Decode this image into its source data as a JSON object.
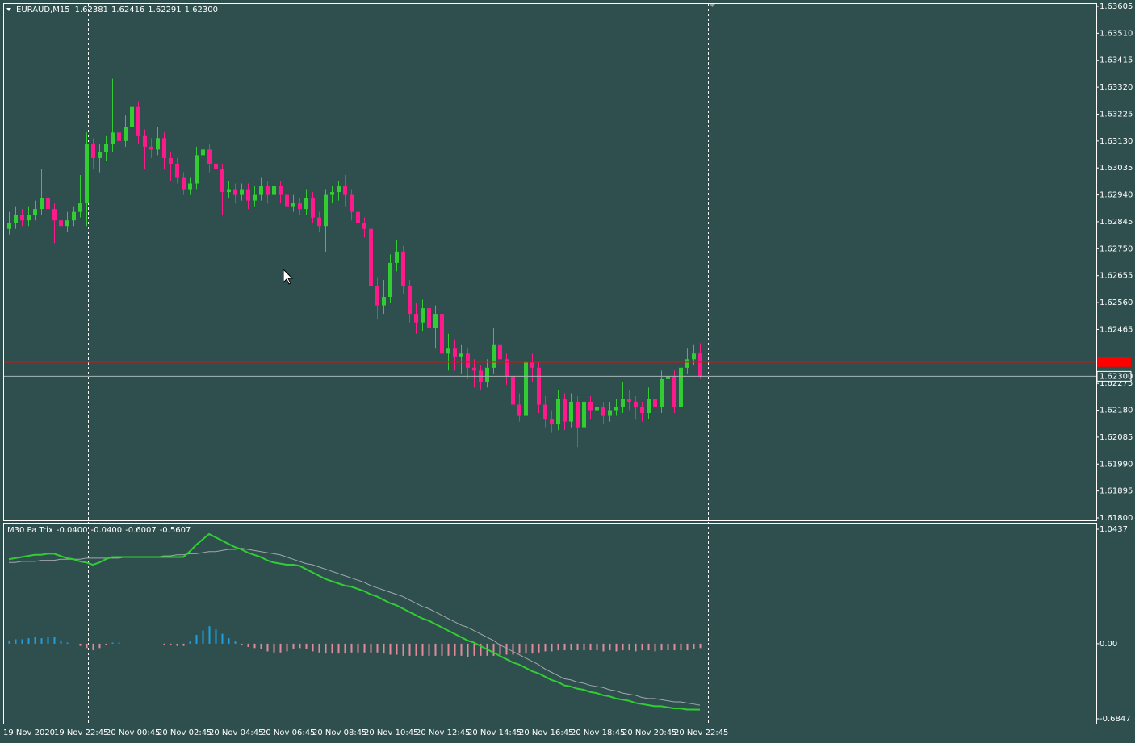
{
  "chart_data": [
    {
      "type": "candlestick",
      "title": "EURAUD,M15",
      "legend_values": [
        "1.62381",
        "1.62416",
        "1.62291",
        "1.62300"
      ],
      "up_color": "#32cd32",
      "down_color": "#ff1a8c",
      "ylim": [
        1.618,
        1.63605
      ],
      "yticks": [
        1.63605,
        {
          "value": 1.6351,
          "label": "1.63510"
        },
        1.63415,
        {
          "value": 1.6332,
          "label": "1.63320"
        },
        1.63225,
        {
          "value": 1.6313,
          "label": "1.63130"
        },
        1.63035,
        {
          "value": 1.6294,
          "label": "1.62940"
        },
        1.62845,
        {
          "value": 1.6275,
          "label": "1.62750"
        },
        1.62655,
        {
          "value": 1.6256,
          "label": "1.62560"
        },
        1.62465,
        1.62275,
        {
          "value": 1.6218,
          "label": "1.62180"
        },
        1.62085,
        {
          "value": 1.6199,
          "label": "1.61990"
        },
        1.61895,
        {
          "value": 1.618,
          "label": "1.61800"
        }
      ],
      "bid": {
        "value": 1.623,
        "label": "1.62300"
      },
      "ask": 1.6235,
      "ask_color": "#ff0000",
      "categories": [
        "19 Nov 2020",
        null,
        null,
        null,
        null,
        null,
        null,
        "19 Nov 22:45",
        null,
        null,
        null,
        null,
        null,
        null,
        null,
        "20 Nov 00:45",
        null,
        null,
        null,
        null,
        null,
        null,
        null,
        "20 Nov 02:45",
        null,
        null,
        null,
        null,
        null,
        null,
        null,
        "20 Nov 04:45",
        null,
        null,
        null,
        null,
        null,
        null,
        null,
        "20 Nov 06:45",
        null,
        null,
        null,
        null,
        null,
        null,
        null,
        "20 Nov 08:45",
        null,
        null,
        null,
        null,
        null,
        null,
        null,
        "20 Nov 10:45",
        null,
        null,
        null,
        null,
        null,
        null,
        null,
        "20 Nov 12:45",
        null,
        null,
        null,
        null,
        null,
        null,
        null,
        "20 Nov 14:45",
        null,
        null,
        null,
        null,
        null,
        null,
        null,
        "20 Nov 16:45",
        null,
        null,
        null,
        null,
        null,
        null,
        null,
        "20 Nov 18:45",
        null,
        null,
        null,
        null,
        null,
        null,
        null,
        "20 Nov 20:45",
        null,
        null,
        null,
        null,
        null,
        null,
        null,
        "20 Nov 22:45",
        null,
        null,
        null,
        null
      ],
      "ohlc": [
        [
          1.6282,
          1.6288,
          1.628,
          1.6284
        ],
        [
          1.6284,
          1.629,
          1.6282,
          1.6287
        ],
        [
          1.6287,
          1.6289,
          1.6283,
          1.6285
        ],
        [
          1.6285,
          1.629,
          1.6283,
          1.6287
        ],
        [
          1.6287,
          1.6292,
          1.6285,
          1.6289
        ],
        [
          1.6289,
          1.6303,
          1.6287,
          1.6293
        ],
        [
          1.6293,
          1.6295,
          1.6286,
          1.6289
        ],
        [
          1.6289,
          1.6291,
          1.6277,
          1.6285
        ],
        [
          1.6285,
          1.6288,
          1.6281,
          1.6283
        ],
        [
          1.6283,
          1.6288,
          1.6281,
          1.6285
        ],
        [
          1.6285,
          1.629,
          1.6283,
          1.6288
        ],
        [
          1.6288,
          1.6301,
          1.6286,
          1.6291
        ],
        [
          1.6291,
          1.6316,
          1.6283,
          1.6312
        ],
        [
          1.6312,
          1.6314,
          1.6303,
          1.6307
        ],
        [
          1.6307,
          1.6312,
          1.6302,
          1.6309
        ],
        [
          1.6309,
          1.6315,
          1.6306,
          1.6312
        ],
        [
          1.6312,
          1.6335,
          1.6309,
          1.6316
        ],
        [
          1.6316,
          1.6318,
          1.631,
          1.6313
        ],
        [
          1.6313,
          1.6322,
          1.6311,
          1.6318
        ],
        [
          1.6318,
          1.6327,
          1.6314,
          1.6325
        ],
        [
          1.6325,
          1.6327,
          1.6312,
          1.6315
        ],
        [
          1.6315,
          1.6317,
          1.6303,
          1.6311
        ],
        [
          1.6311,
          1.6314,
          1.6307,
          1.631
        ],
        [
          1.631,
          1.6318,
          1.6308,
          1.6314
        ],
        [
          1.6314,
          1.6316,
          1.6303,
          1.6307
        ],
        [
          1.6307,
          1.6309,
          1.6299,
          1.6305
        ],
        [
          1.6305,
          1.6307,
          1.6298,
          1.63
        ],
        [
          1.63,
          1.6302,
          1.6294,
          1.6296
        ],
        [
          1.6296,
          1.63,
          1.6294,
          1.6298
        ],
        [
          1.6298,
          1.6311,
          1.6296,
          1.6308
        ],
        [
          1.6308,
          1.6313,
          1.6305,
          1.631
        ],
        [
          1.631,
          1.6312,
          1.6302,
          1.6305
        ],
        [
          1.6305,
          1.6307,
          1.63,
          1.6303
        ],
        [
          1.6303,
          1.6305,
          1.6287,
          1.6295
        ],
        [
          1.6295,
          1.6299,
          1.6293,
          1.6296
        ],
        [
          1.6296,
          1.6298,
          1.6291,
          1.6294
        ],
        [
          1.6294,
          1.6298,
          1.6292,
          1.6296
        ],
        [
          1.6296,
          1.6298,
          1.6289,
          1.6292
        ],
        [
          1.6292,
          1.6297,
          1.629,
          1.6294
        ],
        [
          1.6294,
          1.63,
          1.6292,
          1.6297
        ],
        [
          1.6297,
          1.6299,
          1.6291,
          1.6294
        ],
        [
          1.6294,
          1.63,
          1.6292,
          1.6297
        ],
        [
          1.6297,
          1.6299,
          1.6291,
          1.6294
        ],
        [
          1.6294,
          1.6296,
          1.6287,
          1.629
        ],
        [
          1.629,
          1.6294,
          1.6288,
          1.6291
        ],
        [
          1.6291,
          1.6293,
          1.6287,
          1.6289
        ],
        [
          1.6289,
          1.6296,
          1.6287,
          1.6293
        ],
        [
          1.6293,
          1.6295,
          1.6284,
          1.6286
        ],
        [
          1.6286,
          1.6288,
          1.6281,
          1.6283
        ],
        [
          1.6283,
          1.6296,
          1.6274,
          1.6294
        ],
        [
          1.6294,
          1.6297,
          1.6291,
          1.6295
        ],
        [
          1.6295,
          1.6299,
          1.6292,
          1.6297
        ],
        [
          1.6297,
          1.6301,
          1.629,
          1.6294
        ],
        [
          1.6294,
          1.6296,
          1.6285,
          1.6288
        ],
        [
          1.6288,
          1.629,
          1.628,
          1.6284
        ],
        [
          1.6284,
          1.6286,
          1.6279,
          1.6282
        ],
        [
          1.6282,
          1.6284,
          1.6251,
          1.6262
        ],
        [
          1.6262,
          1.6265,
          1.625,
          1.6255
        ],
        [
          1.6255,
          1.6264,
          1.6252,
          1.6258
        ],
        [
          1.6258,
          1.6273,
          1.6256,
          1.627
        ],
        [
          1.627,
          1.6278,
          1.6267,
          1.6274
        ],
        [
          1.6274,
          1.6276,
          1.6259,
          1.6262
        ],
        [
          1.6262,
          1.6264,
          1.6249,
          1.6252
        ],
        [
          1.6252,
          1.6256,
          1.6245,
          1.6249
        ],
        [
          1.6249,
          1.6257,
          1.6246,
          1.6254
        ],
        [
          1.6254,
          1.6256,
          1.6244,
          1.6247
        ],
        [
          1.6247,
          1.6255,
          1.624,
          1.6252
        ],
        [
          1.6252,
          1.6254,
          1.6228,
          1.6238
        ],
        [
          1.6238,
          1.6245,
          1.6232,
          1.624
        ],
        [
          1.624,
          1.6243,
          1.6232,
          1.6237
        ],
        [
          1.6237,
          1.6241,
          1.6231,
          1.6238
        ],
        [
          1.6238,
          1.624,
          1.6229,
          1.6233
        ],
        [
          1.6233,
          1.6236,
          1.6226,
          1.6232
        ],
        [
          1.6232,
          1.6234,
          1.6225,
          1.6228
        ],
        [
          1.6228,
          1.6236,
          1.6226,
          1.6233
        ],
        [
          1.6233,
          1.6247,
          1.6231,
          1.6241
        ],
        [
          1.6241,
          1.6243,
          1.6233,
          1.6236
        ],
        [
          1.6236,
          1.6238,
          1.6227,
          1.623
        ],
        [
          1.623,
          1.6232,
          1.6213,
          1.622
        ],
        [
          1.622,
          1.6224,
          1.6214,
          1.6216
        ],
        [
          1.6216,
          1.6245,
          1.6214,
          1.6235
        ],
        [
          1.6235,
          1.6238,
          1.6228,
          1.6233
        ],
        [
          1.6233,
          1.6235,
          1.6217,
          1.622
        ],
        [
          1.622,
          1.6223,
          1.6212,
          1.6215
        ],
        [
          1.6215,
          1.6218,
          1.621,
          1.6213
        ],
        [
          1.6213,
          1.6225,
          1.6211,
          1.6222
        ],
        [
          1.6222,
          1.6224,
          1.6211,
          1.6214
        ],
        [
          1.6214,
          1.6224,
          1.6212,
          1.6221
        ],
        [
          1.6221,
          1.6223,
          1.6205,
          1.6212
        ],
        [
          1.6212,
          1.6226,
          1.621,
          1.6221
        ],
        [
          1.6221,
          1.6223,
          1.6215,
          1.6218
        ],
        [
          1.6218,
          1.6222,
          1.6216,
          1.6219
        ],
        [
          1.6219,
          1.6221,
          1.6213,
          1.6216
        ],
        [
          1.6216,
          1.6221,
          1.6214,
          1.6218
        ],
        [
          1.6218,
          1.6222,
          1.6216,
          1.6219
        ],
        [
          1.6219,
          1.6228,
          1.6217,
          1.6222
        ],
        [
          1.6222,
          1.6225,
          1.6218,
          1.6221
        ],
        [
          1.6221,
          1.6223,
          1.6215,
          1.6219
        ],
        [
          1.6219,
          1.6221,
          1.6214,
          1.6217
        ],
        [
          1.6217,
          1.6226,
          1.6215,
          1.6222
        ],
        [
          1.6222,
          1.6224,
          1.6217,
          1.6219
        ],
        [
          1.6219,
          1.6232,
          1.6217,
          1.6229
        ],
        [
          1.6229,
          1.6233,
          1.6226,
          1.623
        ],
        [
          1.623,
          1.6232,
          1.6217,
          1.6219
        ],
        [
          1.6219,
          1.6237,
          1.6217,
          1.6233
        ],
        [
          1.6233,
          1.624,
          1.6231,
          1.6236
        ],
        [
          1.6236,
          1.6241,
          1.6234,
          1.6238
        ],
        [
          1.62381,
          1.62416,
          1.62291,
          1.623
        ]
      ]
    },
    {
      "type": "line",
      "title": "M30 Pa Trix",
      "legend_values": [
        "-0.0400",
        "-0.0400",
        "-0.6007",
        "-0.5607"
      ],
      "ylim": [
        -0.6847,
        1.0437
      ],
      "yticks": [
        1.0437,
        {
          "value": 0,
          "label": "0.00"
        },
        -0.6847
      ],
      "series": [
        {
          "color": "#32cd32",
          "values": [
            0.77,
            0.78,
            0.79,
            0.8,
            0.81,
            0.81,
            0.82,
            0.82,
            0.8,
            0.78,
            0.77,
            0.75,
            0.74,
            0.72,
            0.74,
            0.77,
            0.79,
            0.79,
            0.79,
            0.79,
            0.79,
            0.79,
            0.79,
            0.79,
            0.79,
            0.79,
            0.79,
            0.79,
            0.84,
            0.9,
            0.95,
            1.0,
            0.97,
            0.94,
            0.91,
            0.88,
            0.86,
            0.83,
            0.81,
            0.79,
            0.76,
            0.74,
            0.73,
            0.72,
            0.72,
            0.71,
            0.68,
            0.65,
            0.62,
            0.59,
            0.57,
            0.55,
            0.53,
            0.52,
            0.5,
            0.48,
            0.45,
            0.43,
            0.4,
            0.37,
            0.35,
            0.32,
            0.29,
            0.26,
            0.23,
            0.21,
            0.18,
            0.15,
            0.12,
            0.09,
            0.06,
            0.03,
            0.01,
            -0.02,
            -0.05,
            -0.08,
            -0.11,
            -0.14,
            -0.17,
            -0.19,
            -0.22,
            -0.25,
            -0.27,
            -0.3,
            -0.33,
            -0.35,
            -0.38,
            -0.39,
            -0.41,
            -0.42,
            -0.44,
            -0.45,
            -0.47,
            -0.48,
            -0.5,
            -0.51,
            -0.52,
            -0.54,
            -0.55,
            -0.56,
            -0.57,
            -0.57,
            -0.58,
            -0.59,
            -0.59,
            -0.6,
            -0.6,
            -0.6007
          ]
        },
        {
          "color": "#a0a8a8",
          "values": [
            0.74,
            0.74,
            0.75,
            0.75,
            0.75,
            0.76,
            0.76,
            0.76,
            0.77,
            0.77,
            0.77,
            0.77,
            0.78,
            0.78,
            0.78,
            0.78,
            0.78,
            0.78,
            0.79,
            0.79,
            0.79,
            0.79,
            0.79,
            0.79,
            0.8,
            0.8,
            0.81,
            0.81,
            0.82,
            0.82,
            0.83,
            0.84,
            0.84,
            0.85,
            0.86,
            0.86,
            0.87,
            0.86,
            0.85,
            0.84,
            0.83,
            0.82,
            0.81,
            0.79,
            0.77,
            0.75,
            0.73,
            0.72,
            0.7,
            0.68,
            0.66,
            0.64,
            0.62,
            0.6,
            0.58,
            0.56,
            0.53,
            0.51,
            0.49,
            0.47,
            0.45,
            0.43,
            0.4,
            0.37,
            0.34,
            0.32,
            0.29,
            0.26,
            0.23,
            0.2,
            0.17,
            0.15,
            0.12,
            0.09,
            0.06,
            0.03,
            -0.01,
            -0.04,
            -0.07,
            -0.1,
            -0.13,
            -0.16,
            -0.19,
            -0.23,
            -0.26,
            -0.29,
            -0.32,
            -0.33,
            -0.35,
            -0.36,
            -0.38,
            -0.39,
            -0.4,
            -0.42,
            -0.43,
            -0.45,
            -0.46,
            -0.47,
            -0.49,
            -0.5,
            -0.5,
            -0.51,
            -0.52,
            -0.53,
            -0.53,
            -0.54,
            -0.55,
            -0.5607
          ]
        }
      ],
      "histogram": {
        "pos_color": "#1ea0e0",
        "neg_color": "#e08a9c",
        "values": [
          0.03,
          0.04,
          0.04,
          0.05,
          0.06,
          0.05,
          0.06,
          0.06,
          0.03,
          0.01,
          0,
          -0.02,
          -0.04,
          -0.06,
          -0.04,
          -0.01,
          0.01,
          0.01,
          0,
          0,
          0,
          0,
          0,
          0,
          -0.01,
          -0.01,
          -0.02,
          -0.02,
          0.02,
          0.08,
          0.12,
          0.16,
          0.13,
          0.09,
          0.05,
          0.02,
          -0.01,
          -0.03,
          -0.04,
          -0.05,
          -0.07,
          -0.08,
          -0.08,
          -0.07,
          -0.05,
          -0.04,
          -0.05,
          -0.07,
          -0.08,
          -0.09,
          -0.09,
          -0.09,
          -0.09,
          -0.08,
          -0.08,
          -0.08,
          -0.08,
          -0.08,
          -0.09,
          -0.1,
          -0.1,
          -0.11,
          -0.11,
          -0.11,
          -0.11,
          -0.11,
          -0.11,
          -0.11,
          -0.11,
          -0.11,
          -0.11,
          -0.12,
          -0.11,
          -0.11,
          -0.11,
          -0.11,
          -0.1,
          -0.1,
          -0.1,
          -0.09,
          -0.09,
          -0.09,
          -0.08,
          -0.07,
          -0.07,
          -0.06,
          -0.06,
          -0.06,
          -0.06,
          -0.06,
          -0.06,
          -0.06,
          -0.07,
          -0.06,
          -0.07,
          -0.06,
          -0.06,
          -0.07,
          -0.06,
          -0.06,
          -0.07,
          -0.06,
          -0.06,
          -0.06,
          -0.06,
          -0.06,
          -0.05,
          -0.04
        ]
      }
    }
  ]
}
